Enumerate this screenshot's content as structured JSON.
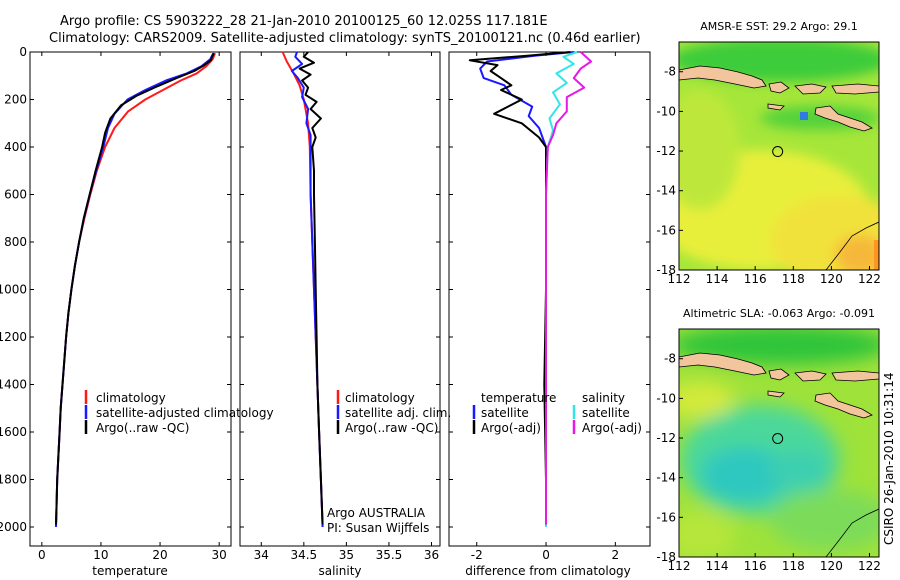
{
  "header": {
    "line1": "Argo profile: CS 5903222_28 21-Jan-2010 20100125_60 12.025S 117.181E",
    "line2": "Climatology: CARS2009. Satellite-adjusted climatology: synTS_20100121.nc (0.46d earlier)"
  },
  "footer": {
    "credit": "CSIRO 26-Jan-2010 10:31:14"
  },
  "colors": {
    "climatology": "#ff1a1a",
    "satellite": "#1a1aff",
    "argo": "#000000",
    "salinity_satellite": "#33e6e6",
    "salinity_argo": "#e619e6",
    "land": "#f2c59c"
  },
  "chart_data": [
    {
      "id": "temperature",
      "type": "line",
      "xlabel": "temperature",
      "ylabel": "",
      "xlim": [
        -2,
        32
      ],
      "ylim": [
        2080,
        0
      ],
      "xticks": [
        0,
        10,
        20,
        30
      ],
      "yticks": [
        0,
        200,
        400,
        600,
        800,
        1000,
        1200,
        1400,
        1600,
        1800,
        2000
      ],
      "legend": [
        "climatology",
        "satellite-adjusted climatology",
        "Argo(..raw -QC)"
      ],
      "series": [
        {
          "name": "climatology",
          "color": "#ff1a1a",
          "points": [
            [
              29.3,
              5
            ],
            [
              28.9,
              30
            ],
            [
              27.8,
              60
            ],
            [
              26.2,
              90
            ],
            [
              23.5,
              120
            ],
            [
              20.5,
              160
            ],
            [
              17.5,
              200
            ],
            [
              14.6,
              250
            ],
            [
              12.3,
              320
            ],
            [
              10.7,
              400
            ],
            [
              9.3,
              500
            ],
            [
              8.2,
              600
            ],
            [
              7.2,
              700
            ],
            [
              6.3,
              800
            ],
            [
              5.6,
              900
            ],
            [
              5.0,
              1000
            ],
            [
              4.5,
              1100
            ],
            [
              4.1,
              1200
            ],
            [
              3.8,
              1300
            ],
            [
              3.5,
              1400
            ],
            [
              3.2,
              1500
            ],
            [
              3.0,
              1600
            ],
            [
              2.8,
              1700
            ],
            [
              2.6,
              1800
            ],
            [
              2.5,
              1900
            ],
            [
              2.4,
              2000
            ]
          ]
        },
        {
          "name": "satellite",
          "color": "#1a1aff",
          "points": [
            [
              29.0,
              5
            ],
            [
              28.5,
              30
            ],
            [
              27.0,
              60
            ],
            [
              24.5,
              90
            ],
            [
              21.0,
              120
            ],
            [
              17.5,
              160
            ],
            [
              14.5,
              200
            ],
            [
              12.3,
              260
            ],
            [
              11.2,
              320
            ],
            [
              10.4,
              400
            ],
            [
              9.2,
              500
            ],
            [
              8.1,
              600
            ],
            [
              7.1,
              700
            ],
            [
              6.3,
              800
            ],
            [
              5.6,
              900
            ],
            [
              5.0,
              1000
            ],
            [
              4.5,
              1100
            ],
            [
              4.1,
              1200
            ],
            [
              3.8,
              1300
            ],
            [
              3.5,
              1400
            ],
            [
              3.2,
              1500
            ],
            [
              3.0,
              1600
            ],
            [
              2.8,
              1700
            ],
            [
              2.6,
              1800
            ],
            [
              2.5,
              1900
            ],
            [
              2.4,
              2000
            ]
          ]
        },
        {
          "name": "Argo",
          "color": "#000000",
          "points": [
            [
              29.1,
              5
            ],
            [
              28.8,
              20
            ],
            [
              28.6,
              35
            ],
            [
              27.5,
              55
            ],
            [
              25.8,
              80
            ],
            [
              22.8,
              110
            ],
            [
              19.5,
              145
            ],
            [
              16.0,
              185
            ],
            [
              13.4,
              225
            ],
            [
              11.6,
              280
            ],
            [
              10.7,
              340
            ],
            [
              10.2,
              400
            ],
            [
              9.1,
              500
            ],
            [
              8.1,
              600
            ],
            [
              7.1,
              700
            ],
            [
              6.3,
              800
            ],
            [
              5.6,
              900
            ],
            [
              5.0,
              1000
            ],
            [
              4.5,
              1100
            ],
            [
              4.1,
              1200
            ],
            [
              3.8,
              1300
            ],
            [
              3.5,
              1400
            ],
            [
              3.2,
              1500
            ],
            [
              3.0,
              1600
            ],
            [
              2.8,
              1700
            ],
            [
              2.6,
              1800
            ],
            [
              2.5,
              1900
            ],
            [
              2.4,
              1990
            ]
          ]
        }
      ]
    },
    {
      "id": "salinity",
      "type": "line",
      "xlabel": "salinity",
      "xlim": [
        33.75,
        36.1
      ],
      "ylim": [
        2080,
        0
      ],
      "xticks": [
        34,
        34.5,
        35,
        35.5,
        36
      ],
      "legend": [
        "climatology",
        "satellite adj. clim.",
        "Argo(..raw -QC)"
      ],
      "annotation": [
        "Argo AUSTRALIA",
        "PI: Susan Wijffels"
      ],
      "series": [
        {
          "name": "climatology",
          "color": "#ff1a1a",
          "points": [
            [
              34.25,
              0
            ],
            [
              34.3,
              40
            ],
            [
              34.38,
              90
            ],
            [
              34.45,
              140
            ],
            [
              34.5,
              200
            ],
            [
              34.55,
              300
            ],
            [
              34.57,
              400
            ],
            [
              34.58,
              600
            ],
            [
              34.6,
              800
            ],
            [
              34.62,
              1000
            ],
            [
              34.64,
              1200
            ],
            [
              34.66,
              1400
            ],
            [
              34.68,
              1600
            ],
            [
              34.7,
              1800
            ],
            [
              34.72,
              2000
            ]
          ]
        },
        {
          "name": "satellite",
          "color": "#1a1aff",
          "points": [
            [
              34.42,
              0
            ],
            [
              34.4,
              20
            ],
            [
              34.48,
              50
            ],
            [
              34.36,
              80
            ],
            [
              34.43,
              110
            ],
            [
              34.5,
              150
            ],
            [
              34.48,
              190
            ],
            [
              34.55,
              240
            ],
            [
              34.53,
              300
            ],
            [
              34.58,
              350
            ],
            [
              34.58,
              400
            ],
            [
              34.58,
              600
            ],
            [
              34.6,
              800
            ],
            [
              34.62,
              1000
            ],
            [
              34.64,
              1200
            ],
            [
              34.66,
              1400
            ],
            [
              34.68,
              1600
            ],
            [
              34.7,
              1800
            ],
            [
              34.72,
              2000
            ]
          ]
        },
        {
          "name": "Argo",
          "color": "#000000",
          "points": [
            [
              34.55,
              0
            ],
            [
              34.5,
              20
            ],
            [
              34.62,
              45
            ],
            [
              34.45,
              70
            ],
            [
              34.58,
              95
            ],
            [
              34.48,
              120
            ],
            [
              34.55,
              150
            ],
            [
              34.52,
              180
            ],
            [
              34.65,
              210
            ],
            [
              34.58,
              240
            ],
            [
              34.7,
              280
            ],
            [
              34.6,
              320
            ],
            [
              34.64,
              360
            ],
            [
              34.6,
              400
            ],
            [
              34.62,
              500
            ],
            [
              34.62,
              600
            ],
            [
              34.63,
              800
            ],
            [
              34.64,
              1000
            ],
            [
              34.65,
              1200
            ],
            [
              34.66,
              1400
            ],
            [
              34.68,
              1600
            ],
            [
              34.7,
              1800
            ],
            [
              34.72,
              1990
            ]
          ]
        }
      ]
    },
    {
      "id": "difference",
      "type": "line",
      "xlabel": "difference from climatology",
      "xlim": [
        -2.8,
        3.0
      ],
      "ylim": [
        2080,
        0
      ],
      "xticks": [
        -2,
        0,
        2
      ],
      "legend_left_title": "temperature",
      "legend_right_title": "salinity",
      "legend_left": [
        "satellite",
        "Argo(-adj)"
      ],
      "legend_right": [
        "satellite",
        "Argo(-adj)"
      ],
      "series": [
        {
          "name": "temperature satellite",
          "color": "#1a1aff",
          "points": [
            [
              0.8,
              0
            ],
            [
              -0.3,
              15
            ],
            [
              -1.7,
              40
            ],
            [
              -1.9,
              70
            ],
            [
              -1.8,
              110
            ],
            [
              -1.2,
              140
            ],
            [
              -1.0,
              180
            ],
            [
              -0.4,
              230
            ],
            [
              -0.5,
              270
            ],
            [
              -0.2,
              320
            ],
            [
              0.0,
              400
            ],
            [
              0.0,
              600
            ],
            [
              0.0,
              1000
            ],
            [
              0.0,
              1400
            ],
            [
              0.0,
              1800
            ],
            [
              0.0,
              2000
            ]
          ]
        },
        {
          "name": "temperature Argo",
          "color": "#000000",
          "points": [
            [
              0.7,
              0
            ],
            [
              -0.5,
              15
            ],
            [
              -2.2,
              35
            ],
            [
              -1.4,
              55
            ],
            [
              -1.6,
              80
            ],
            [
              -1.3,
              110
            ],
            [
              -1.0,
              140
            ],
            [
              -1.3,
              160
            ],
            [
              -0.7,
              200
            ],
            [
              -1.5,
              260
            ],
            [
              -0.7,
              300
            ],
            [
              -0.2,
              360
            ],
            [
              0.0,
              400
            ],
            [
              0.0,
              600
            ],
            [
              0.0,
              1000
            ],
            [
              -0.05,
              1400
            ],
            [
              0.0,
              1800
            ],
            [
              0.0,
              1990
            ]
          ]
        },
        {
          "name": "salinity satellite",
          "color": "#33e6e6",
          "points": [
            [
              0.9,
              0
            ],
            [
              0.5,
              20
            ],
            [
              0.8,
              50
            ],
            [
              0.3,
              90
            ],
            [
              0.6,
              130
            ],
            [
              0.2,
              170
            ],
            [
              0.4,
              220
            ],
            [
              0.1,
              280
            ],
            [
              0.2,
              330
            ],
            [
              0.05,
              400
            ],
            [
              0.0,
              600
            ],
            [
              0.0,
              1000
            ],
            [
              0.0,
              1400
            ],
            [
              0.0,
              1800
            ],
            [
              0.0,
              2000
            ]
          ]
        },
        {
          "name": "salinity Argo",
          "color": "#e619e6",
          "points": [
            [
              1.0,
              0
            ],
            [
              1.3,
              40
            ],
            [
              1.0,
              70
            ],
            [
              0.8,
              110
            ],
            [
              1.1,
              150
            ],
            [
              0.6,
              190
            ],
            [
              0.6,
              250
            ],
            [
              0.3,
              300
            ],
            [
              0.2,
              350
            ],
            [
              0.05,
              400
            ],
            [
              0.0,
              600
            ],
            [
              0.0,
              1000
            ],
            [
              0.0,
              1400
            ],
            [
              0.0,
              1800
            ],
            [
              0.0,
              1990
            ]
          ]
        }
      ]
    },
    {
      "id": "sst_map",
      "type": "heatmap",
      "title": "AMSR-E SST: 29.2 Argo: 29.1",
      "xlim": [
        112,
        122.5
      ],
      "ylim": [
        -18,
        -6.5
      ],
      "xticks": [
        112,
        114,
        116,
        118,
        120,
        122
      ],
      "yticks": [
        -8,
        -10,
        -12,
        -14,
        -16,
        -18
      ],
      "marker": [
        117.181,
        -12.025
      ]
    },
    {
      "id": "sla_map",
      "type": "heatmap",
      "title": "Altimetric SLA: -0.063 Argo: -0.091",
      "xlim": [
        112,
        122.5
      ],
      "ylim": [
        -18,
        -6.5
      ],
      "xticks": [
        112,
        114,
        116,
        118,
        120,
        122
      ],
      "yticks": [
        -8,
        -10,
        -12,
        -14,
        -16,
        -18
      ],
      "marker": [
        117.181,
        -12.025
      ]
    }
  ]
}
